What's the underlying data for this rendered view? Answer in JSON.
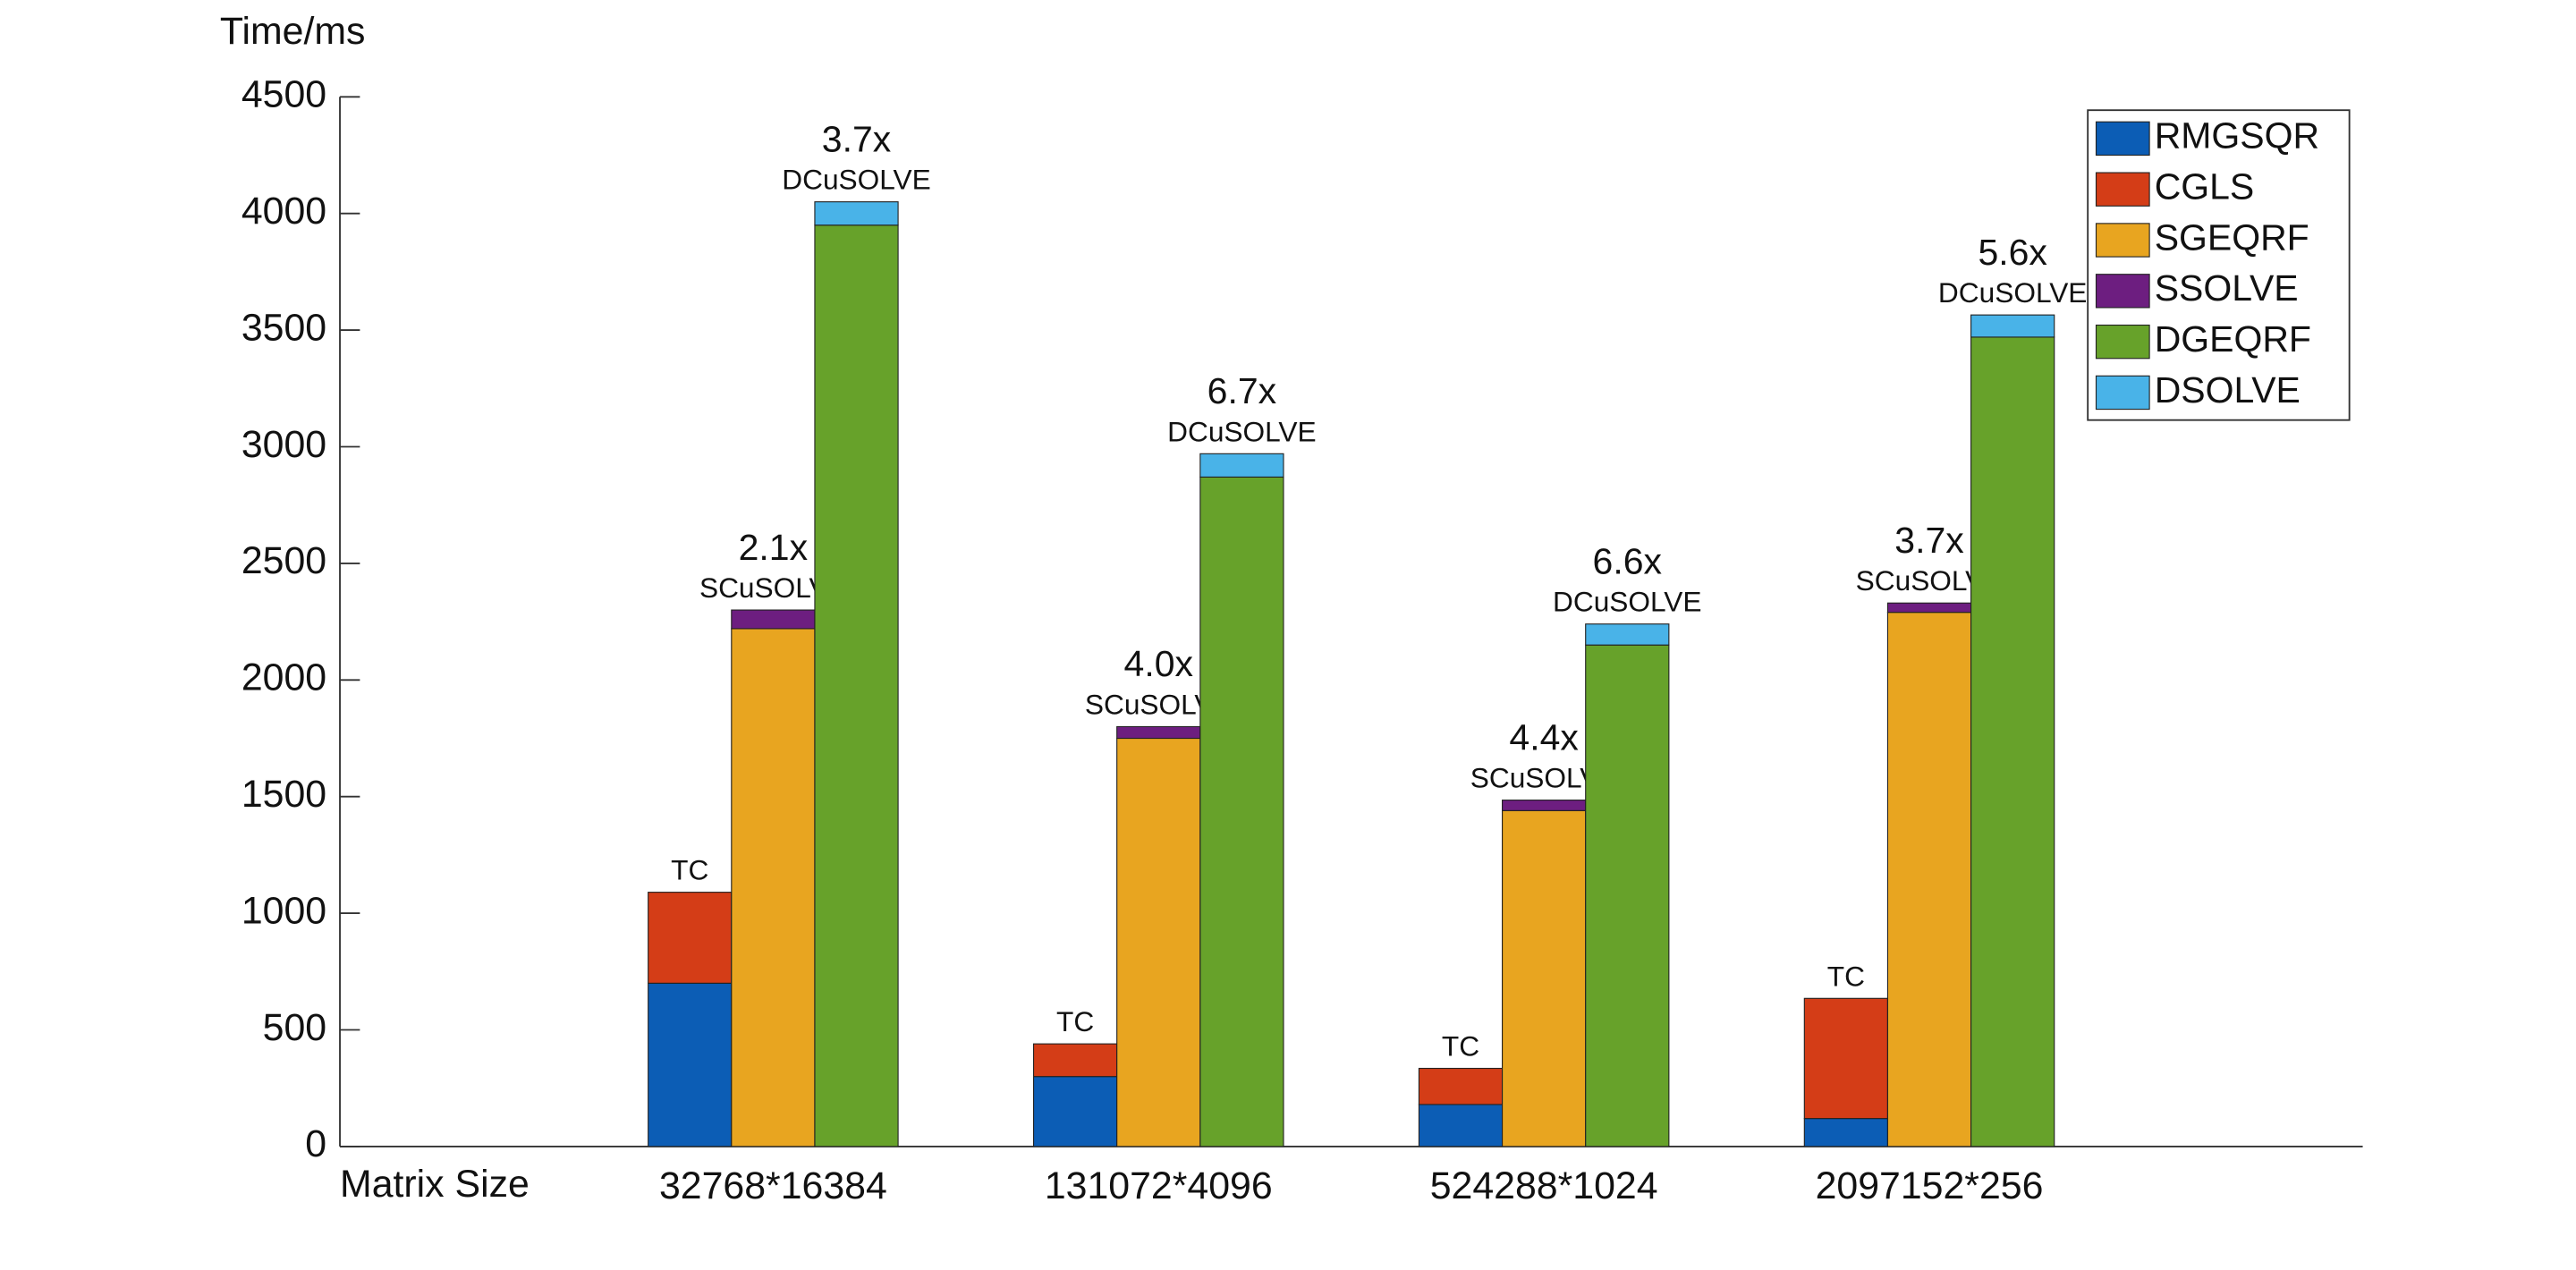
{
  "chart_data": {
    "type": "grouped-stacked-bar",
    "y_label": "Time/ms",
    "x_label": "Matrix Size",
    "categories": [
      "32768*16384",
      "131072*4096",
      "524288*1024",
      "2097152*256"
    ],
    "stacks": [
      "TC",
      "SCuSOLVE",
      "DCuSOLVE"
    ],
    "series": [
      {
        "name": "RMGSQR",
        "color": "#0c5db5",
        "stack": 0,
        "values": [
          700,
          300,
          180,
          120
        ]
      },
      {
        "name": "CGLS",
        "color": "#d43d17",
        "stack": 0,
        "values": [
          390,
          140,
          155,
          515
        ]
      },
      {
        "name": "SGEQRF",
        "color": "#e8a520",
        "stack": 1,
        "values": [
          2220,
          1750,
          1440,
          2290
        ]
      },
      {
        "name": "SSOLVE",
        "color": "#6d1e80",
        "stack": 1,
        "values": [
          80,
          50,
          45,
          40
        ]
      },
      {
        "name": "DGEQRF",
        "color": "#67a22a",
        "stack": 2,
        "values": [
          3950,
          2870,
          2150,
          3470
        ]
      },
      {
        "name": "DSOLVE",
        "color": "#49b3e8",
        "stack": 2,
        "values": [
          100,
          100,
          90,
          95
        ]
      }
    ],
    "speedups": [
      {
        "stack": 1,
        "labels": [
          "2.1x",
          "4.0x",
          "4.4x",
          "3.7x"
        ]
      },
      {
        "stack": 2,
        "labels": [
          "3.7x",
          "6.7x",
          "6.6x",
          "5.6x"
        ]
      }
    ],
    "ylim": [
      0,
      4500
    ],
    "yticks": [
      0,
      500,
      1000,
      1500,
      2000,
      2500,
      3000,
      3500,
      4000,
      4500
    ],
    "legend": "top-right"
  }
}
